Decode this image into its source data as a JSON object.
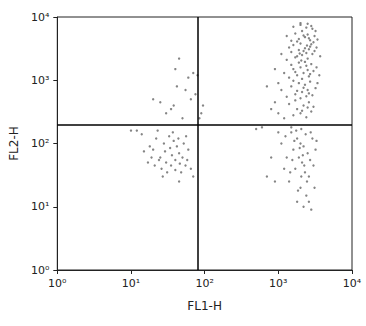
{
  "chart_data": {
    "type": "scatter",
    "x_label": "FL1-H",
    "y_label": "FL2-H",
    "log": true,
    "grid": false,
    "color": "#666666",
    "marker": "circle",
    "xlim": [
      1,
      10000
    ],
    "ylim": [
      1,
      10000
    ],
    "xticks": [
      {
        "value": 1,
        "label": "10⁰"
      },
      {
        "value": 10,
        "label": "10¹"
      },
      {
        "value": 100,
        "label": "10²"
      },
      {
        "value": 1000,
        "label": "10³"
      },
      {
        "value": 10000,
        "label": "10⁴"
      }
    ],
    "yticks": [
      {
        "value": 1,
        "label": "10⁰"
      },
      {
        "value": 10,
        "label": "10¹"
      },
      {
        "value": 100,
        "label": "10²"
      },
      {
        "value": 1000,
        "label": "10³"
      },
      {
        "value": 10000,
        "label": "10⁴"
      }
    ],
    "quadrant_x": 80,
    "quadrant_y": 200,
    "points": [
      [
        20,
        80
      ],
      [
        25,
        60
      ],
      [
        30,
        50
      ],
      [
        35,
        45
      ],
      [
        40,
        55
      ],
      [
        45,
        70
      ],
      [
        28,
        100
      ],
      [
        22,
        120
      ],
      [
        18,
        90
      ],
      [
        15,
        75
      ],
      [
        33,
        130
      ],
      [
        38,
        110
      ],
      [
        42,
        90
      ],
      [
        50,
        60
      ],
      [
        55,
        45
      ],
      [
        48,
        35
      ],
      [
        26,
        40
      ],
      [
        31,
        35
      ],
      [
        36,
        65
      ],
      [
        24,
        55
      ],
      [
        19,
        60
      ],
      [
        44,
        120
      ],
      [
        52,
        100
      ],
      [
        60,
        80
      ],
      [
        29,
        75
      ],
      [
        34,
        85
      ],
      [
        40,
        38
      ],
      [
        27,
        30
      ],
      [
        21,
        45
      ],
      [
        17,
        50
      ],
      [
        58,
        55
      ],
      [
        65,
        40
      ],
      [
        46,
        48
      ],
      [
        37,
        150
      ],
      [
        23,
        160
      ],
      [
        12,
        160
      ],
      [
        10,
        160
      ],
      [
        14,
        140
      ],
      [
        56,
        130
      ],
      [
        70,
        30
      ],
      [
        45,
        25
      ],
      [
        40,
        1500
      ],
      [
        45,
        2200
      ],
      [
        60,
        1100
      ],
      [
        70,
        1300
      ],
      [
        25,
        450
      ],
      [
        20,
        500
      ],
      [
        30,
        300
      ],
      [
        50,
        250
      ],
      [
        35,
        350
      ],
      [
        65,
        500
      ],
      [
        55,
        700
      ],
      [
        90,
        300
      ],
      [
        95,
        400
      ],
      [
        85,
        250
      ],
      [
        42,
        800
      ],
      [
        75,
        600
      ],
      [
        80,
        1200
      ],
      [
        38,
        400
      ],
      [
        1500,
        150
      ],
      [
        1800,
        120
      ],
      [
        2000,
        100
      ],
      [
        2200,
        90
      ],
      [
        1600,
        80
      ],
      [
        2500,
        70
      ],
      [
        1900,
        60
      ],
      [
        2100,
        50
      ],
      [
        1700,
        40
      ],
      [
        2300,
        35
      ],
      [
        2600,
        30
      ],
      [
        1400,
        25
      ],
      [
        2000,
        20
      ],
      [
        2400,
        15
      ],
      [
        1800,
        12
      ],
      [
        2200,
        10
      ],
      [
        2800,
        9
      ],
      [
        1300,
        60
      ],
      [
        1100,
        100
      ],
      [
        1000,
        150
      ],
      [
        700,
        30
      ],
      [
        900,
        25
      ],
      [
        1200,
        40
      ],
      [
        2700,
        55
      ],
      [
        3000,
        45
      ],
      [
        3200,
        80
      ],
      [
        2900,
        120
      ],
      [
        1500,
        180
      ],
      [
        2050,
        170
      ],
      [
        2350,
        140
      ],
      [
        1650,
        110
      ],
      [
        1950,
        85
      ],
      [
        2150,
        65
      ],
      [
        2450,
        25
      ],
      [
        1850,
        18
      ],
      [
        2600,
        12
      ],
      [
        3100,
        20
      ],
      [
        1250,
        130
      ],
      [
        1550,
        55
      ],
      [
        2750,
        150
      ],
      [
        1750,
        160
      ],
      [
        3300,
        110
      ],
      [
        2250,
        45
      ],
      [
        1450,
        35
      ],
      [
        2050,
        30
      ],
      [
        800,
        60
      ],
      [
        600,
        180
      ],
      [
        500,
        170
      ],
      [
        1200,
        250
      ],
      [
        1600,
        280
      ],
      [
        2000,
        300
      ],
      [
        2400,
        260
      ],
      [
        2800,
        320
      ],
      [
        1800,
        350
      ],
      [
        2200,
        400
      ],
      [
        1400,
        420
      ],
      [
        2600,
        450
      ],
      [
        3000,
        380
      ],
      [
        1000,
        300
      ],
      [
        900,
        450
      ],
      [
        800,
        350
      ],
      [
        1700,
        480
      ],
      [
        2100,
        330
      ],
      [
        2500,
        370
      ],
      [
        1300,
        550
      ],
      [
        1700,
        600
      ],
      [
        2100,
        650
      ],
      [
        2500,
        700
      ],
      [
        2900,
        580
      ],
      [
        1500,
        800
      ],
      [
        1900,
        900
      ],
      [
        2300,
        850
      ],
      [
        2700,
        950
      ],
      [
        1100,
        700
      ],
      [
        3200,
        750
      ],
      [
        2000,
        520
      ],
      [
        1600,
        980
      ],
      [
        2200,
        760
      ],
      [
        1800,
        680
      ],
      [
        2600,
        620
      ],
      [
        3400,
        900
      ],
      [
        1000,
        900
      ],
      [
        700,
        800
      ],
      [
        2400,
        560
      ],
      [
        1400,
        1100
      ],
      [
        1800,
        1200
      ],
      [
        2200,
        1300
      ],
      [
        2600,
        1150
      ],
      [
        3000,
        1400
      ],
      [
        1600,
        1500
      ],
      [
        2000,
        1600
      ],
      [
        2400,
        1700
      ],
      [
        2800,
        1800
      ],
      [
        1200,
        1300
      ],
      [
        3300,
        1600
      ],
      [
        1900,
        1900
      ],
      [
        2100,
        1050
      ],
      [
        1500,
        1750
      ],
      [
        2500,
        1450
      ],
      [
        1700,
        1350
      ],
      [
        2300,
        1950
      ],
      [
        2700,
        1250
      ],
      [
        900,
        1500
      ],
      [
        3600,
        1200
      ],
      [
        1300,
        2100
      ],
      [
        1700,
        2300
      ],
      [
        2100,
        2500
      ],
      [
        2500,
        2200
      ],
      [
        2900,
        2600
      ],
      [
        1500,
        2800
      ],
      [
        1900,
        3000
      ],
      [
        2300,
        3200
      ],
      [
        2700,
        3400
      ],
      [
        3100,
        2900
      ],
      [
        1600,
        3600
      ],
      [
        2000,
        3800
      ],
      [
        2400,
        2700
      ],
      [
        2800,
        3700
      ],
      [
        1800,
        2400
      ],
      [
        2200,
        2900
      ],
      [
        2600,
        3100
      ],
      [
        3300,
        3300
      ],
      [
        1100,
        2600
      ],
      [
        3700,
        2400
      ],
      [
        1400,
        3300
      ],
      [
        2050,
        2050
      ],
      [
        2450,
        3550
      ],
      [
        1950,
        2650
      ],
      [
        1500,
        4200
      ],
      [
        1900,
        4500
      ],
      [
        2300,
        4800
      ],
      [
        2700,
        4300
      ],
      [
        3100,
        5000
      ],
      [
        1700,
        5500
      ],
      [
        2100,
        6000
      ],
      [
        2500,
        5300
      ],
      [
        2900,
        6500
      ],
      [
        1600,
        7000
      ],
      [
        2000,
        7500
      ],
      [
        2400,
        6800
      ],
      [
        2800,
        7200
      ],
      [
        3200,
        6000
      ],
      [
        1800,
        4100
      ],
      [
        2200,
        5100
      ],
      [
        2600,
        4600
      ],
      [
        3400,
        4400
      ],
      [
        1300,
        5000
      ],
      [
        2000,
        8000
      ],
      [
        2500,
        7800
      ],
      [
        3000,
        4000
      ]
    ]
  }
}
